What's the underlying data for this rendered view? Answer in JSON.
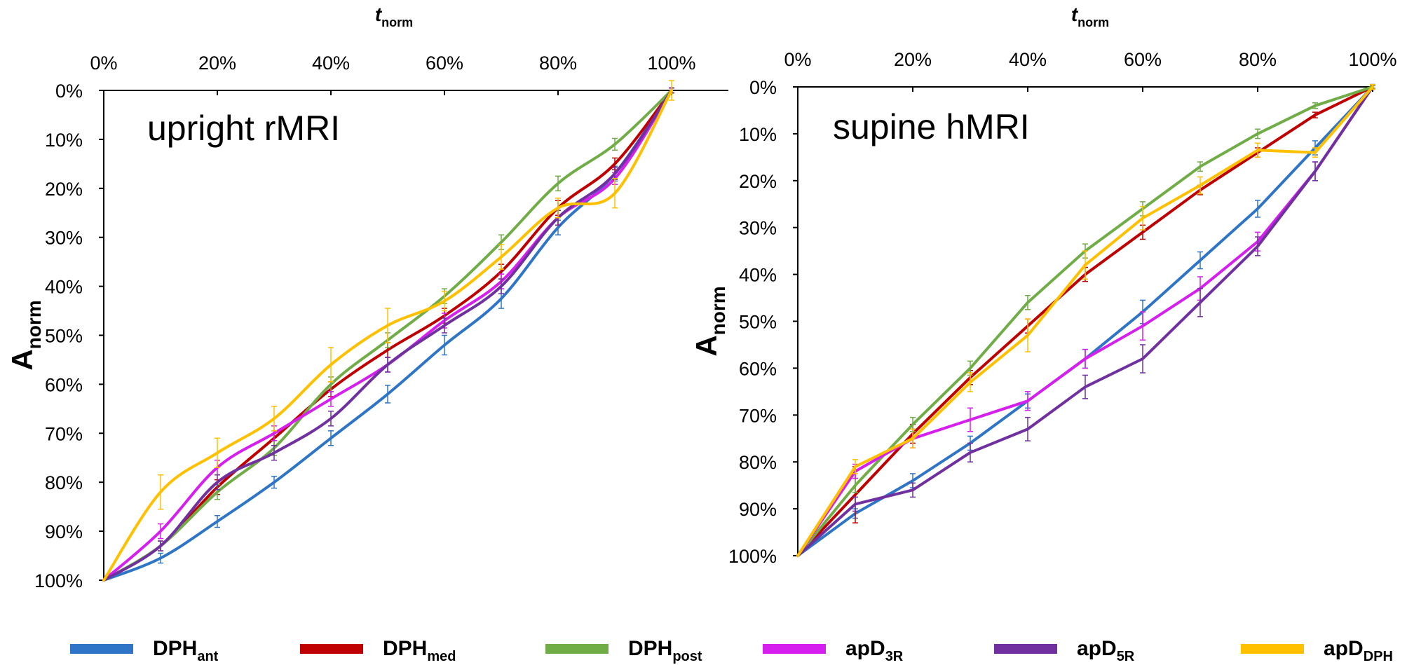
{
  "chart_data": [
    {
      "type": "line",
      "annotation": "upright rMRI",
      "x_axis": {
        "label_main": "t",
        "label_sub": "norm",
        "ticks": [
          "0%",
          "20%",
          "40%",
          "60%",
          "80%",
          "100%"
        ],
        "range": [
          0,
          110
        ],
        "position": "top"
      },
      "y_axis": {
        "label_main": "A",
        "label_sub": "norm",
        "ticks": [
          "0%",
          "10%",
          "20%",
          "30%",
          "40%",
          "50%",
          "60%",
          "70%",
          "80%",
          "90%",
          "100%"
        ],
        "range": [
          0,
          100
        ],
        "inverted": true
      },
      "grid": false,
      "x": [
        0,
        10,
        20,
        30,
        40,
        50,
        60,
        70,
        80,
        90,
        100
      ],
      "series": [
        {
          "name": "DPH",
          "sub": "ant",
          "color": "#2e75c7",
          "values": [
            100,
            95.5,
            88,
            80,
            71,
            62,
            52,
            42.5,
            28,
            17,
            0
          ],
          "errors": [
            0,
            1,
            1.2,
            1.2,
            1.5,
            1.8,
            2,
            2,
            1.5,
            1.5,
            0.5
          ]
        },
        {
          "name": "DPH",
          "sub": "med",
          "color": "#c00000",
          "values": [
            100,
            93,
            81,
            71,
            61,
            53,
            46,
            37,
            24,
            15,
            0
          ],
          "errors": [
            0,
            1,
            1.5,
            1.5,
            1.5,
            1.5,
            1.5,
            1.5,
            1.5,
            1.2,
            0.5
          ]
        },
        {
          "name": "DPH",
          "sub": "post",
          "color": "#70ad47",
          "values": [
            100,
            93,
            82,
            73,
            60,
            51,
            42,
            31,
            19,
            11,
            0
          ],
          "errors": [
            0,
            1,
            1.5,
            1.5,
            1.5,
            1.5,
            1.5,
            1.5,
            1.5,
            1.2,
            0.5
          ]
        },
        {
          "name": "apD",
          "sub": "3R",
          "color": "#d61fee",
          "values": [
            100,
            90,
            77,
            70,
            63,
            56,
            47,
            39,
            26,
            18,
            0
          ],
          "errors": [
            0,
            1.5,
            1.5,
            1.5,
            1.5,
            1.5,
            1.5,
            1.5,
            1.5,
            1.2,
            0.5
          ]
        },
        {
          "name": "apD",
          "sub": "5R",
          "color": "#7030a0",
          "values": [
            100,
            93,
            80,
            74,
            67,
            56,
            48,
            40,
            26,
            17,
            0
          ],
          "errors": [
            0,
            1,
            1.5,
            1.5,
            1.5,
            1.5,
            1.5,
            1.5,
            1.5,
            1.2,
            0.5
          ]
        },
        {
          "name": "apD",
          "sub": "DPH",
          "color": "#ffc000",
          "values": [
            100,
            82,
            74,
            67,
            56,
            48,
            43,
            34,
            24,
            21,
            0
          ],
          "errors": [
            0,
            3.5,
            3,
            2.5,
            3.5,
            3.5,
            2,
            2.5,
            2,
            3,
            2
          ]
        }
      ]
    },
    {
      "type": "line",
      "annotation": "supine hMRI",
      "x_axis": {
        "label_main": "t",
        "label_sub": "norm",
        "ticks": [
          "0%",
          "20%",
          "40%",
          "60%",
          "80%",
          "100%"
        ],
        "range": [
          0,
          100
        ],
        "position": "top"
      },
      "y_axis": {
        "label_main": "A",
        "label_sub": "norm",
        "ticks": [
          "0%",
          "10%",
          "20%",
          "30%",
          "40%",
          "50%",
          "60%",
          "70%",
          "80%",
          "90%",
          "100%"
        ],
        "range": [
          0,
          100
        ],
        "inverted": true
      },
      "grid": false,
      "x": [
        0,
        10,
        20,
        30,
        40,
        50,
        60,
        70,
        80,
        90,
        100
      ],
      "series": [
        {
          "name": "DPH",
          "sub": "ant",
          "color": "#2e75c7",
          "values": [
            100,
            91,
            84,
            76,
            67,
            58,
            48,
            37,
            26,
            13,
            0
          ],
          "errors": [
            0,
            1,
            1.5,
            1.5,
            1.5,
            2,
            2.5,
            1.8,
            1.8,
            1.5,
            0.5
          ]
        },
        {
          "name": "DPH",
          "sub": "med",
          "color": "#c00000",
          "values": [
            100,
            87,
            74,
            62,
            51,
            40,
            31,
            22,
            14,
            6,
            0
          ],
          "errors": [
            0,
            6,
            2,
            1.5,
            1.5,
            1.5,
            1.5,
            1,
            1,
            0.6,
            0.3
          ]
        },
        {
          "name": "DPH",
          "sub": "post",
          "color": "#70ad47",
          "values": [
            100,
            85,
            72,
            60,
            46,
            35,
            26,
            17,
            10,
            4,
            0
          ],
          "errors": [
            0,
            1.5,
            1.5,
            1.5,
            1.5,
            1.5,
            1.5,
            1,
            1,
            0.6,
            0.3
          ]
        },
        {
          "name": "apD",
          "sub": "3R",
          "color": "#d61fee",
          "values": [
            100,
            82,
            75,
            71,
            67,
            58,
            51,
            43,
            33,
            18,
            0
          ],
          "errors": [
            0,
            1.5,
            2,
            2.5,
            2,
            2,
            3,
            2.5,
            2,
            2,
            0.5
          ]
        },
        {
          "name": "apD",
          "sub": "5R",
          "color": "#7030a0",
          "values": [
            100,
            89,
            86,
            78,
            73,
            64,
            58,
            46,
            34,
            18,
            0
          ],
          "errors": [
            0,
            1.5,
            1.5,
            2,
            2.5,
            2.5,
            3,
            3,
            2,
            2,
            0.5
          ]
        },
        {
          "name": "apD",
          "sub": "DPH",
          "color": "#ffc000",
          "values": [
            100,
            81,
            75,
            63,
            53,
            38,
            28,
            21,
            13.5,
            14,
            0
          ],
          "errors": [
            0,
            1.5,
            2,
            2,
            3.5,
            3,
            2.5,
            1.8,
            1.5,
            1,
            0.5
          ]
        }
      ]
    }
  ],
  "legend": [
    {
      "name": "DPH",
      "sub": "ant",
      "color": "#2e75c7"
    },
    {
      "name": "DPH",
      "sub": "med",
      "color": "#c00000"
    },
    {
      "name": "DPH",
      "sub": "post",
      "color": "#70ad47"
    },
    {
      "name": "apD",
      "sub": "3R",
      "color": "#d61fee"
    },
    {
      "name": "apD",
      "sub": "5R",
      "color": "#7030a0"
    },
    {
      "name": "apD",
      "sub": "DPH",
      "color": "#ffc000"
    }
  ]
}
